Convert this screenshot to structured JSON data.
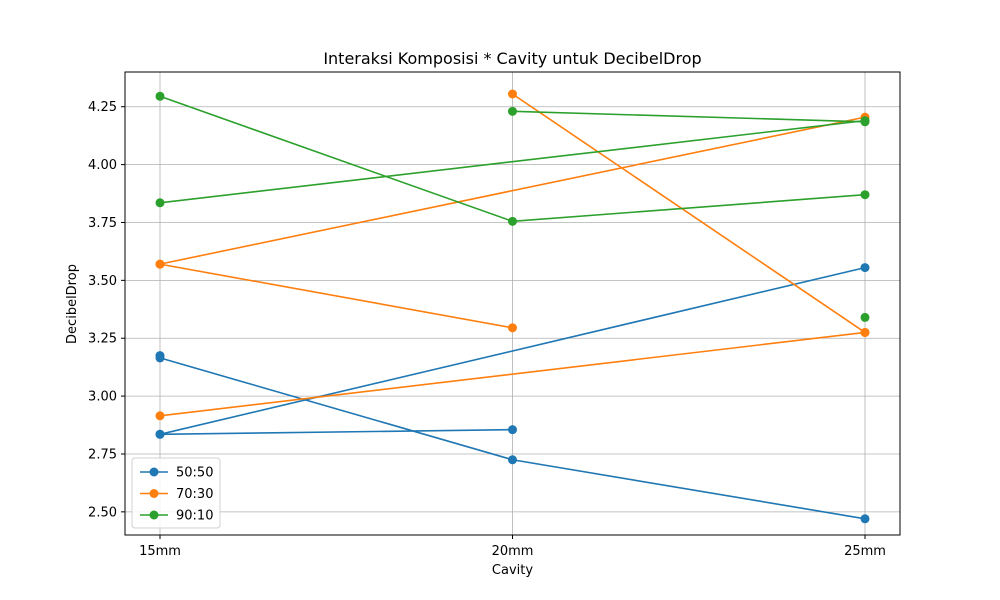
{
  "chart_data": {
    "type": "line",
    "title": "Interaksi Komposisi * Cavity untuk DecibelDrop",
    "xlabel": "Cavity",
    "ylabel": "DecibelDrop",
    "categories": [
      "15mm",
      "20mm",
      "25mm"
    ],
    "ylim": [
      2.4,
      4.4
    ],
    "yticks": [
      "2.50",
      "2.75",
      "3.00",
      "3.25",
      "3.50",
      "3.75",
      "4.00",
      "4.25"
    ],
    "grid": true,
    "legend_position": "lower-left",
    "series": [
      {
        "name": "50:50",
        "color": "#1f77b4",
        "points": [
          [
            "15mm",
            3.175
          ],
          [
            "15mm",
            3.165
          ],
          [
            "20mm",
            2.725
          ],
          [
            "25mm",
            2.47
          ],
          null,
          [
            "15mm",
            2.835
          ],
          [
            "25mm",
            3.555
          ],
          null,
          [
            "15mm",
            2.835
          ],
          [
            "20mm",
            2.855
          ]
        ]
      },
      {
        "name": "70:30",
        "color": "#ff7f0e",
        "points": [
          [
            "20mm",
            4.305
          ],
          [
            "25mm",
            3.275
          ],
          null,
          [
            "15mm",
            3.57
          ],
          [
            "25mm",
            4.205
          ],
          null,
          [
            "15mm",
            3.57
          ],
          [
            "20mm",
            3.295
          ],
          null,
          [
            "15mm",
            2.915
          ],
          [
            "25mm",
            3.275
          ]
        ]
      },
      {
        "name": "90:10",
        "color": "#2ca02c",
        "points": [
          [
            "15mm",
            4.295
          ],
          [
            "20mm",
            3.755
          ],
          [
            "25mm",
            3.87
          ],
          null,
          [
            "15mm",
            3.835
          ],
          [
            "25mm",
            4.19
          ],
          null,
          [
            "20mm",
            4.23
          ],
          [
            "25mm",
            4.185
          ],
          null,
          [
            "25mm",
            3.34
          ]
        ]
      }
    ]
  }
}
